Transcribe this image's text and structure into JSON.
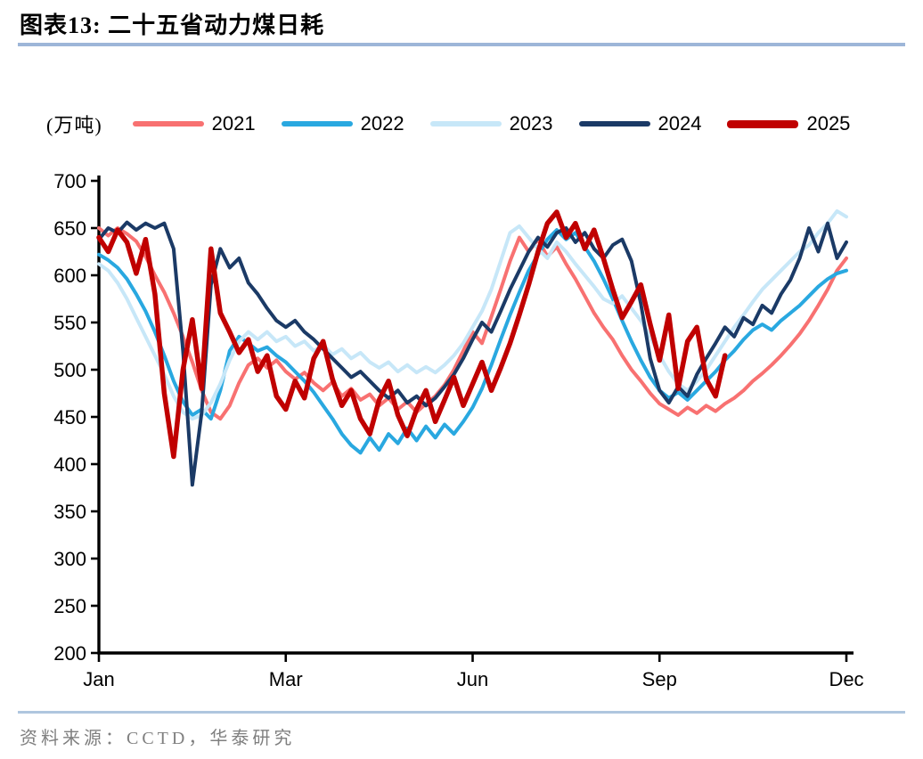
{
  "header": {
    "title": "图表13:  二十五省动力煤日耗"
  },
  "footer": {
    "source": "资料来源：CCTD，华泰研究",
    "text_color": "#7f7f7f"
  },
  "colors": {
    "title_rule": "#9db6d8",
    "footer_rule": "#afc6df",
    "axis": "#000000",
    "background": "#ffffff"
  },
  "chart_data": {
    "type": "line",
    "title": "二十五省动力煤日耗",
    "unit_label": "(万吨)",
    "ylabel": "万吨",
    "ylim": [
      200,
      700
    ],
    "yticks": [
      200,
      250,
      300,
      350,
      400,
      450,
      500,
      550,
      600,
      650,
      700
    ],
    "xticks": [
      "Jan",
      "Mar",
      "Jun",
      "Sep",
      "Dec"
    ],
    "grid": false,
    "legend_position": "top",
    "n_grid": 81,
    "x_note": "points evenly spaced from Jan to Dec; 2025 series ends around early October",
    "series": [
      {
        "name": "2021",
        "color": "#f87171",
        "width": 4,
        "values": [
          650,
          642,
          650,
          644,
          636,
          620,
          600,
          582,
          560,
          535,
          508,
          478,
          455,
          448,
          462,
          486,
          505,
          512,
          502,
          510,
          498,
          490,
          497,
          486,
          478,
          487,
          472,
          480,
          468,
          474,
          462,
          470,
          458,
          466,
          455,
          464,
          472,
          484,
          500,
          520,
          540,
          528,
          556,
          585,
          615,
          640,
          625,
          638,
          620,
          630,
          612,
          596,
          578,
          560,
          545,
          532,
          515,
          500,
          488,
          475,
          464,
          458,
          452,
          460,
          454,
          462,
          456,
          464,
          470,
          478,
          488,
          496,
          505,
          515,
          526,
          538,
          552,
          568,
          585,
          605,
          618
        ]
      },
      {
        "name": "2022",
        "color": "#29a8e0",
        "width": 4,
        "values": [
          622,
          616,
          608,
          596,
          580,
          562,
          540,
          515,
          488,
          466,
          452,
          458,
          448,
          478,
          520,
          535,
          528,
          520,
          524,
          515,
          508,
          498,
          488,
          476,
          462,
          448,
          432,
          420,
          412,
          428,
          415,
          432,
          422,
          438,
          425,
          440,
          428,
          442,
          432,
          445,
          460,
          480,
          505,
          532,
          558,
          582,
          605,
          622,
          638,
          648,
          638,
          645,
          630,
          615,
          596,
          575,
          552,
          530,
          510,
          492,
          478,
          470,
          476,
          468,
          478,
          488,
          498,
          510,
          520,
          532,
          542,
          548,
          542,
          552,
          560,
          568,
          578,
          588,
          596,
          602,
          605
        ]
      },
      {
        "name": "2023",
        "color": "#c7e7f8",
        "width": 4,
        "values": [
          612,
          605,
          592,
          575,
          555,
          535,
          515,
          495,
          472,
          455,
          448,
          452,
          465,
          485,
          510,
          530,
          540,
          532,
          540,
          530,
          535,
          525,
          530,
          520,
          526,
          516,
          522,
          512,
          518,
          508,
          502,
          508,
          498,
          505,
          497,
          503,
          497,
          505,
          515,
          528,
          545,
          562,
          585,
          615,
          645,
          652,
          640,
          628,
          618,
          635,
          625,
          612,
          600,
          588,
          575,
          570,
          578,
          565,
          552,
          535,
          515,
          498,
          485,
          478,
          488,
          500,
          515,
          530,
          545,
          558,
          572,
          585,
          595,
          605,
          615,
          625,
          632,
          645,
          655,
          668,
          662
        ]
      },
      {
        "name": "2024",
        "color": "#1b3a66",
        "width": 4,
        "values": [
          638,
          650,
          645,
          656,
          648,
          655,
          650,
          655,
          628,
          520,
          378,
          455,
          590,
          628,
          608,
          618,
          592,
          580,
          565,
          552,
          545,
          552,
          540,
          532,
          522,
          512,
          502,
          492,
          498,
          488,
          478,
          470,
          478,
          465,
          472,
          462,
          470,
          482,
          495,
          512,
          532,
          550,
          540,
          562,
          585,
          605,
          625,
          640,
          630,
          645,
          650,
          635,
          645,
          628,
          618,
          632,
          638,
          615,
          570,
          512,
          478,
          465,
          482,
          472,
          495,
          512,
          528,
          545,
          535,
          555,
          548,
          568,
          560,
          580,
          595,
          618,
          650,
          625,
          655,
          618,
          635
        ]
      },
      {
        "name": "2025",
        "color": "#c00000",
        "width": 5.5,
        "values": [
          640,
          625,
          648,
          635,
          602,
          638,
          580,
          475,
          408,
          500,
          553,
          480,
          628,
          560,
          540,
          518,
          532,
          498,
          515,
          472,
          458,
          488,
          470,
          512,
          530,
          490,
          462,
          478,
          448,
          432,
          468,
          488,
          452,
          430,
          458,
          478,
          445,
          468,
          492,
          462,
          485,
          508,
          478,
          502,
          528,
          558,
          590,
          625,
          655,
          667,
          640,
          655,
          628,
          648,
          618,
          585,
          555,
          572,
          590,
          548,
          510,
          558,
          480,
          530,
          545,
          490,
          472,
          515
        ]
      }
    ]
  }
}
